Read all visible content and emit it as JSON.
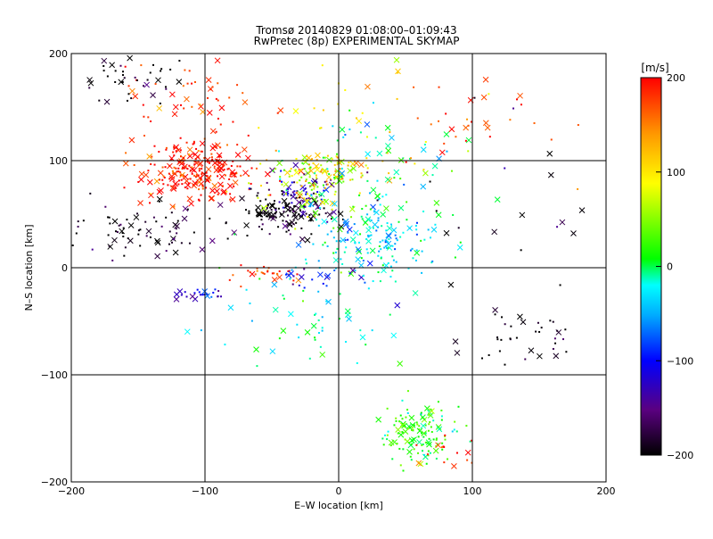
{
  "title_line1": "Tromsø 20140829 01:08:00–01:09:43",
  "title_line2": "RwPretec (8p) EXPERIMENTAL SKYMAP",
  "chart_data": {
    "type": "scatter",
    "title": "Tromsø 20140829 01:08:00–01:09:43",
    "subtitle": "RwPretec (8p) EXPERIMENTAL SKYMAP",
    "xlabel": "E–W location [km]",
    "ylabel": "N–S location [km]",
    "xlim": [
      -200,
      200
    ],
    "ylim": [
      -200,
      200
    ],
    "xticks": [
      -200,
      -100,
      0,
      100,
      200
    ],
    "yticks": [
      -200,
      -100,
      0,
      100,
      200
    ],
    "xtick_labels": [
      "−200",
      "−100",
      "0",
      "100",
      "200"
    ],
    "ytick_labels": [
      "−200",
      "−100",
      "0",
      "100",
      "200"
    ],
    "grid": true,
    "color_quantity": "velocity",
    "colorbar": {
      "label": "[m/s]",
      "range": [
        -200,
        200
      ],
      "ticks": [
        -200,
        -100,
        0,
        100,
        200
      ],
      "tick_labels": [
        "−200",
        "−100",
        "0",
        "100",
        "200"
      ],
      "colors": [
        "#000000",
        "#5a0080",
        "#0000ff",
        "#00aaff",
        "#00ffff",
        "#00ff00",
        "#ffff00",
        "#ff9900",
        "#ff0000"
      ]
    },
    "markers": [
      "x",
      "dot"
    ],
    "clusters": [
      {
        "center": [
          -105,
          92
        ],
        "spread": [
          22,
          15
        ],
        "velocity": 195,
        "count": 260
      },
      {
        "center": [
          -105,
          155
        ],
        "spread": [
          30,
          20
        ],
        "velocity": 190,
        "count": 50
      },
      {
        "center": [
          -160,
          178
        ],
        "spread": [
          20,
          14
        ],
        "velocity": -200,
        "count": 40
      },
      {
        "center": [
          -160,
          35
        ],
        "spread": [
          35,
          15
        ],
        "velocity": -195,
        "count": 90
      },
      {
        "center": [
          -40,
          52
        ],
        "spread": [
          18,
          10
        ],
        "velocity": -200,
        "count": 130
      },
      {
        "center": [
          -25,
          72
        ],
        "spread": [
          15,
          12
        ],
        "velocity": -130,
        "count": 60
      },
      {
        "center": [
          -22,
          78
        ],
        "spread": [
          20,
          15
        ],
        "velocity": 60,
        "count": 90
      },
      {
        "center": [
          -10,
          90
        ],
        "spread": [
          18,
          12
        ],
        "velocity": 120,
        "count": 60
      },
      {
        "center": [
          25,
          25
        ],
        "spread": [
          25,
          18
        ],
        "velocity": -30,
        "count": 170
      },
      {
        "center": [
          30,
          90
        ],
        "spread": [
          35,
          30
        ],
        "velocity": -15,
        "count": 70
      },
      {
        "center": [
          60,
          -155
        ],
        "spread": [
          15,
          14
        ],
        "velocity": 20,
        "count": 130
      },
      {
        "center": [
          80,
          -170
        ],
        "spread": [
          12,
          8
        ],
        "velocity": 180,
        "count": 15
      },
      {
        "center": [
          -55,
          -5
        ],
        "spread": [
          14,
          4
        ],
        "velocity": 180,
        "count": 30
      },
      {
        "center": [
          -100,
          -25
        ],
        "spread": [
          12,
          3
        ],
        "velocity": -120,
        "count": 25
      },
      {
        "center": [
          -20,
          -8
        ],
        "spread": [
          14,
          5
        ],
        "velocity": -100,
        "count": 20
      },
      {
        "center": [
          -20,
          -50
        ],
        "spread": [
          40,
          25
        ],
        "velocity": -10,
        "count": 60
      },
      {
        "center": [
          140,
          -60
        ],
        "spread": [
          25,
          12
        ],
        "velocity": -200,
        "count": 35
      },
      {
        "center": [
          100,
          130
        ],
        "spread": [
          40,
          20
        ],
        "velocity": 180,
        "count": 30
      },
      {
        "center": [
          20,
          140
        ],
        "spread": [
          40,
          30
        ],
        "velocity": 100,
        "count": 30
      },
      {
        "center": [
          120,
          30
        ],
        "spread": [
          50,
          60
        ],
        "velocity": -190,
        "count": 25
      }
    ]
  }
}
